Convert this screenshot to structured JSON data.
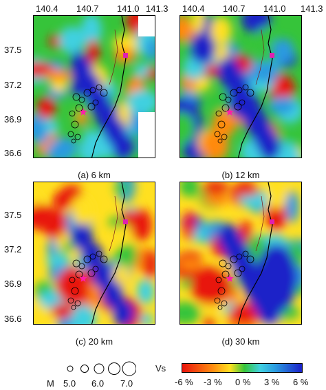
{
  "x_ticks": [
    "140.4",
    "140.7",
    "141.0",
    "141.3"
  ],
  "y_ticks": [
    "37.5",
    "37.2",
    "36.9",
    "36.6"
  ],
  "panels": [
    {
      "caption": "(a) 6 km"
    },
    {
      "caption": "(b) 12 km"
    },
    {
      "caption": "(c) 20 km"
    },
    {
      "caption": "(d) 30 km"
    }
  ],
  "magnitude_legend": {
    "label": "M",
    "values": [
      "5.0",
      "6.0",
      "7.0"
    ]
  },
  "velocity_legend": {
    "label": "Vs",
    "ticks": [
      "-6 %",
      "-3 %",
      "0 %",
      "3 %",
      "6 %"
    ]
  },
  "colors": {
    "low": "#e8140c",
    "mid_low": "#ffe020",
    "mid": "#36c43a",
    "mid_high": "#2a9ae0",
    "high": "#1a20c8",
    "epicenter_star": "#ff1ea8",
    "station_square": "#e020b0"
  }
}
